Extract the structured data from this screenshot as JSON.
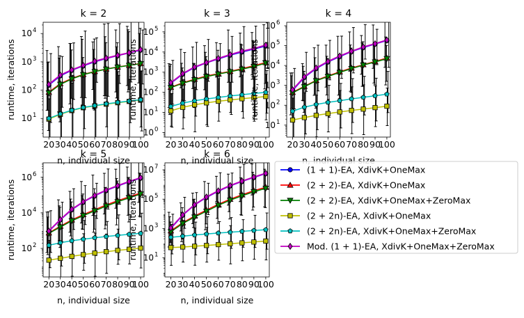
{
  "chart_data": {
    "type": "line",
    "x": [
      20,
      30,
      40,
      50,
      60,
      70,
      80,
      90,
      100
    ],
    "x_tick_labels": [
      "20",
      "30",
      "40",
      "50",
      "60",
      "70",
      "80",
      "90",
      "100"
    ],
    "xlim": [
      15,
      103
    ],
    "xlabel": "n, individual size",
    "ylabel": "runtime, iterations",
    "yscale": "log",
    "grid": false,
    "error_bars": "large vertical whiskers on every point",
    "legend": {
      "placement": "right of bottom row",
      "entries": [
        {
          "label": "(1 + 1)-EA, XdivK+OneMax",
          "color": "#0000ff",
          "marker": "circle"
        },
        {
          "label": "(2 + 2)-EA, XdivK+OneMax",
          "color": "#ff0000",
          "marker": "triangle-up"
        },
        {
          "label": "(2 + 2)-EA, XdivK+OneMax+ZeroMax",
          "color": "#008000",
          "marker": "triangle-down"
        },
        {
          "label": "(2 + 2n)-EA, XdivK+OneMax",
          "color": "#bfbf00",
          "marker": "square"
        },
        {
          "label": "(2 + 2n)-EA, XdivK+OneMax+ZeroMax",
          "color": "#00bfbf",
          "marker": "pentagon"
        },
        {
          "label": "Mod. (1 + 1)-EA, XdivK+OneMax+ZeroMax",
          "color": "#bf00bf",
          "marker": "diamond"
        }
      ]
    },
    "panels": [
      {
        "title": "k = 2",
        "ylim": [
          2.2,
          25000
        ],
        "y_ticks": [
          {
            "value": 10,
            "label": "10",
            "exp": "1"
          },
          {
            "value": 100,
            "label": "10",
            "exp": "2"
          },
          {
            "value": 1000,
            "label": "10",
            "exp": "3"
          },
          {
            "value": 10000,
            "label": "10",
            "exp": "4"
          }
        ],
        "series": [
          {
            "values": [
              150,
              320,
              500,
              720,
              1000,
              1300,
              1650,
              2050,
              2600
            ]
          },
          {
            "values": [
              85,
              170,
              260,
              360,
              460,
              560,
              660,
              760,
              880
            ]
          },
          {
            "values": [
              80,
              160,
              250,
              350,
              450,
              550,
              650,
              750,
              860
            ]
          },
          {
            "values": [
              9.5,
              14,
              19,
              24,
              28,
              32,
              36,
              40,
              45
            ]
          },
          {
            "values": [
              10,
              14.5,
              19.5,
              24.5,
              28.5,
              33,
              37,
              41,
              46
            ]
          },
          {
            "values": [
              160,
              340,
              520,
              750,
              1050,
              1350,
              1700,
              2100,
              2700
            ]
          }
        ]
      },
      {
        "title": "k = 3",
        "ylim": [
          0.6,
          300000
        ],
        "y_ticks": [
          {
            "value": 1,
            "label": "10",
            "exp": "0"
          },
          {
            "value": 10,
            "label": "10",
            "exp": "1"
          },
          {
            "value": 100,
            "label": "10",
            "exp": "2"
          },
          {
            "value": 1000,
            "label": "10",
            "exp": "3"
          },
          {
            "value": 10000,
            "label": "10",
            "exp": "4"
          },
          {
            "value": 100000,
            "label": "10",
            "exp": "5"
          }
        ],
        "series": [
          {
            "values": [
              280,
              800,
              1700,
              2900,
              4500,
              7000,
              10000,
              14000,
              20000
            ]
          },
          {
            "values": [
              180,
              300,
              450,
              650,
              850,
              1100,
              1500,
              2100,
              3000
            ]
          },
          {
            "values": [
              170,
              280,
              420,
              600,
              800,
              1050,
              1400,
              1900,
              2800
            ]
          },
          {
            "values": [
              12,
              18,
              24,
              30,
              36,
              42,
              48,
              55,
              62
            ]
          },
          {
            "values": [
              20,
              29,
              38,
              47,
              56,
              66,
              76,
              88,
              100
            ]
          },
          {
            "values": [
              300,
              850,
              1800,
              3000,
              4800,
              7500,
              11000,
              15000,
              22000
            ]
          }
        ]
      },
      {
        "title": "k = 4",
        "ylim": [
          2.5,
          1500000
        ],
        "y_ticks": [
          {
            "value": 10,
            "label": "10",
            "exp": "1"
          },
          {
            "value": 100,
            "label": "10",
            "exp": "2"
          },
          {
            "value": 1000,
            "label": "10",
            "exp": "3"
          },
          {
            "value": 10000,
            "label": "10",
            "exp": "4"
          },
          {
            "value": 100000,
            "label": "10",
            "exp": "5"
          },
          {
            "value": 1000000,
            "label": "10",
            "exp": "6"
          }
        ],
        "series": [
          {
            "values": [
              550,
              2500,
              7000,
              15000,
              28000,
              50000,
              80000,
              120000,
              180000
            ]
          },
          {
            "values": [
              450,
              900,
              1800,
              3000,
              4800,
              7500,
              11000,
              16000,
              24000
            ]
          },
          {
            "values": [
              420,
              850,
              1700,
              2800,
              4500,
              7000,
              10500,
              15000,
              22000
            ]
          },
          {
            "values": [
              18,
              24,
              31,
              38,
              46,
              55,
              64,
              76,
              90
            ]
          },
          {
            "values": [
              50,
              80,
              110,
              140,
              170,
              210,
              250,
              300,
              360
            ]
          },
          {
            "values": [
              600,
              2700,
              7500,
              16000,
              30000,
              52000,
              85000,
              125000,
              190000
            ]
          }
        ]
      },
      {
        "title": "k = 5",
        "ylim": [
          2.5,
          6500000
        ],
        "y_ticks": [
          {
            "value": 100,
            "label": "10",
            "exp": "2"
          },
          {
            "value": 10000,
            "label": "10",
            "exp": "4"
          },
          {
            "value": 1000000,
            "label": "10",
            "exp": "6"
          }
        ],
        "series": [
          {
            "values": [
              900,
              4000,
              15000,
              40000,
              90000,
              180000,
              320000,
              550000,
              900000
            ]
          },
          {
            "values": [
              750,
              1800,
              4000,
              8000,
              15000,
              28000,
              48000,
              80000,
              130000
            ]
          },
          {
            "values": [
              700,
              1600,
              3600,
              7000,
              13000,
              24000,
              42000,
              70000,
              115000
            ]
          },
          {
            "values": [
              22,
              28,
              36,
              45,
              55,
              66,
              78,
              90,
              105
            ]
          },
          {
            "values": [
              150,
              210,
              270,
              330,
              400,
              470,
              540,
              620,
              700
            ]
          },
          {
            "values": [
              950,
              4200,
              16000,
              42000,
              95000,
              190000,
              340000,
              580000,
              950000
            ]
          }
        ]
      },
      {
        "title": "k = 6",
        "ylim": [
          0.5,
          30000000
        ],
        "y_ticks": [
          {
            "value": 10,
            "label": "10",
            "exp": "1"
          },
          {
            "value": 1000,
            "label": "10",
            "exp": "3"
          },
          {
            "value": 100000,
            "label": "10",
            "exp": "5"
          },
          {
            "value": 10000000,
            "label": "10",
            "exp": "7"
          }
        ],
        "series": [
          {
            "values": [
              1000,
              8000,
              40000,
              130000,
              350000,
              800000,
              1600000,
              3000000,
              5500000
            ]
          },
          {
            "values": [
              700,
              2500,
              7000,
              18000,
              45000,
              100000,
              200000,
              380000,
              650000
            ]
          },
          {
            "values": [
              600,
              2200,
              6000,
              15000,
              38000,
              85000,
              170000,
              320000,
              550000
            ]
          },
          {
            "values": [
              50,
              55,
              62,
              70,
              80,
              92,
              105,
              120,
              140
            ]
          },
          {
            "values": [
              250,
              300,
              360,
              420,
              490,
              560,
              640,
              730,
              830
            ]
          },
          {
            "values": [
              1100,
              8500,
              42000,
              140000,
              370000,
              850000,
              1700000,
              3200000,
              5800000
            ]
          }
        ]
      }
    ]
  }
}
